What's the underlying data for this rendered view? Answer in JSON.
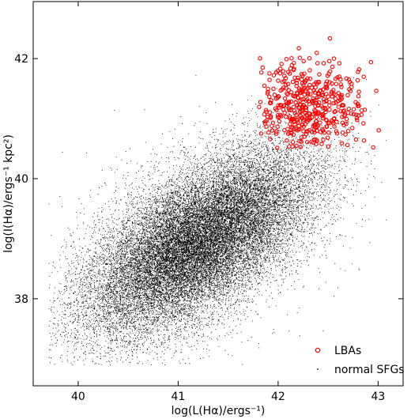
{
  "chart_data": {
    "type": "scatter",
    "xlabel": "log(L(Hα)/ergs⁻¹)",
    "ylabel": "log(I(Hα)/ergs⁻¹ kpc²)",
    "xlim": [
      39.55,
      43.25
    ],
    "ylim": [
      36.55,
      42.95
    ],
    "xticks": [
      40,
      41,
      42,
      43
    ],
    "yticks": [
      38,
      40,
      42
    ],
    "legend_position": "bottom-right",
    "series": [
      {
        "name": "LBAs",
        "marker": "open-circle",
        "color": "#ff0000",
        "cluster": {
          "x_range": [
            41.8,
            43.1
          ],
          "y_range": [
            40.5,
            42.5
          ],
          "center": [
            42.3,
            41.2
          ],
          "approx_count": 450
        }
      },
      {
        "name": "normal SFGs",
        "marker": "dot",
        "color": "#000000",
        "cluster": {
          "x_range": [
            39.7,
            43.1
          ],
          "y_range": [
            36.9,
            41.9
          ],
          "center": [
            41.2,
            38.95
          ],
          "trend_slope": 0.95,
          "approx_count": 30000
        }
      }
    ]
  }
}
